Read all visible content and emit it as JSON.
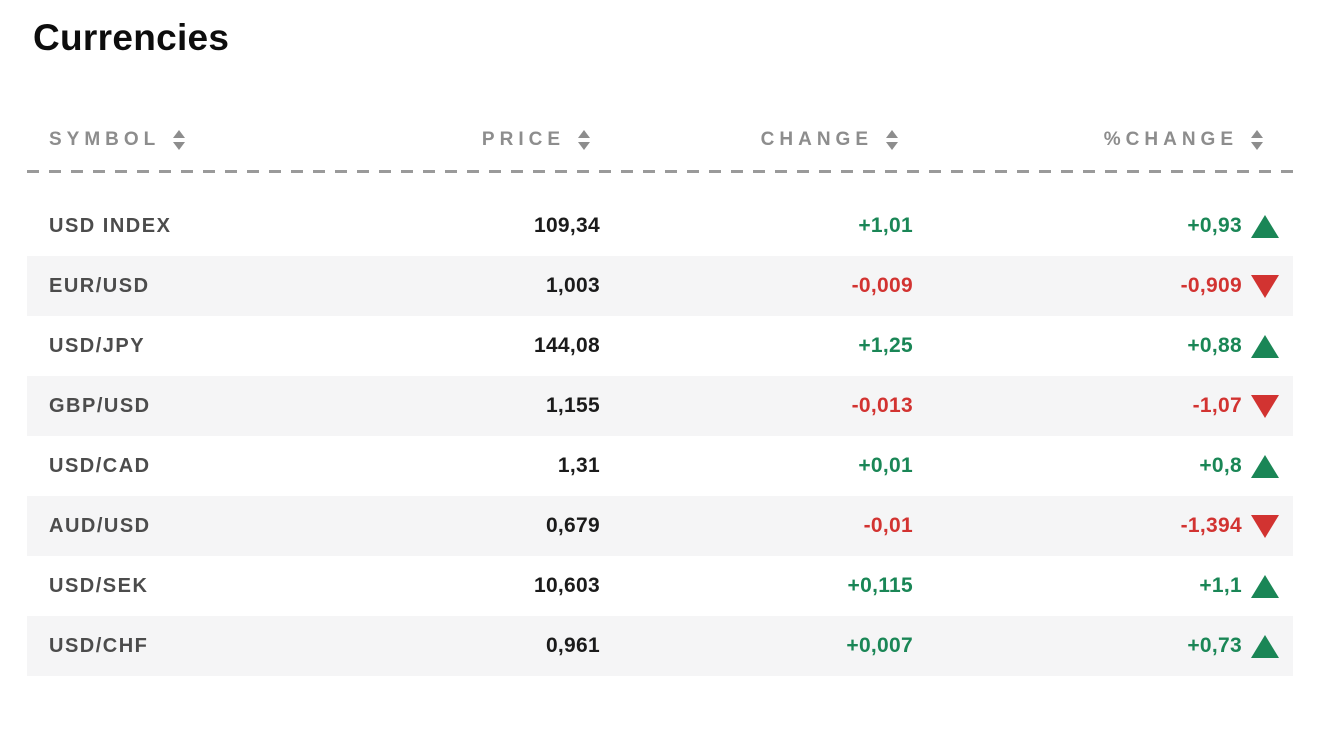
{
  "page": {
    "title": "Currencies"
  },
  "colors": {
    "positive": "#1a8656",
    "negative": "#d23331",
    "header_text": "#8d8d8d",
    "row_stripe": "#f5f5f6",
    "symbol_text": "#4c4c4c",
    "price_text": "#1b1b1b"
  },
  "icons": {
    "sort": "sort-arrows-icon (stacked up/down triangles)",
    "trend_up": "triangle-up-icon",
    "trend_down": "triangle-down-icon"
  },
  "table": {
    "columns": [
      {
        "key": "symbol",
        "label": "SYMBOL",
        "sortable": true
      },
      {
        "key": "price",
        "label": "PRICE",
        "sortable": true
      },
      {
        "key": "change",
        "label": "CHANGE",
        "sortable": true
      },
      {
        "key": "pct_change",
        "label": "%CHANGE",
        "sortable": true
      }
    ],
    "rows": [
      {
        "symbol": "USD INDEX",
        "price": "109,34",
        "change": "+1,01",
        "pct_change": "+0,93",
        "direction": "up"
      },
      {
        "symbol": "EUR/USD",
        "price": "1,003",
        "change": "-0,009",
        "pct_change": "-0,909",
        "direction": "down"
      },
      {
        "symbol": "USD/JPY",
        "price": "144,08",
        "change": "+1,25",
        "pct_change": "+0,88",
        "direction": "up"
      },
      {
        "symbol": "GBP/USD",
        "price": "1,155",
        "change": "-0,013",
        "pct_change": "-1,07",
        "direction": "down"
      },
      {
        "symbol": "USD/CAD",
        "price": "1,31",
        "change": "+0,01",
        "pct_change": "+0,8",
        "direction": "up"
      },
      {
        "symbol": "AUD/USD",
        "price": "0,679",
        "change": "-0,01",
        "pct_change": "-1,394",
        "direction": "down"
      },
      {
        "symbol": "USD/SEK",
        "price": "10,603",
        "change": "+0,115",
        "pct_change": "+1,1",
        "direction": "up"
      },
      {
        "symbol": "USD/CHF",
        "price": "0,961",
        "change": "+0,007",
        "pct_change": "+0,73",
        "direction": "up"
      }
    ]
  }
}
